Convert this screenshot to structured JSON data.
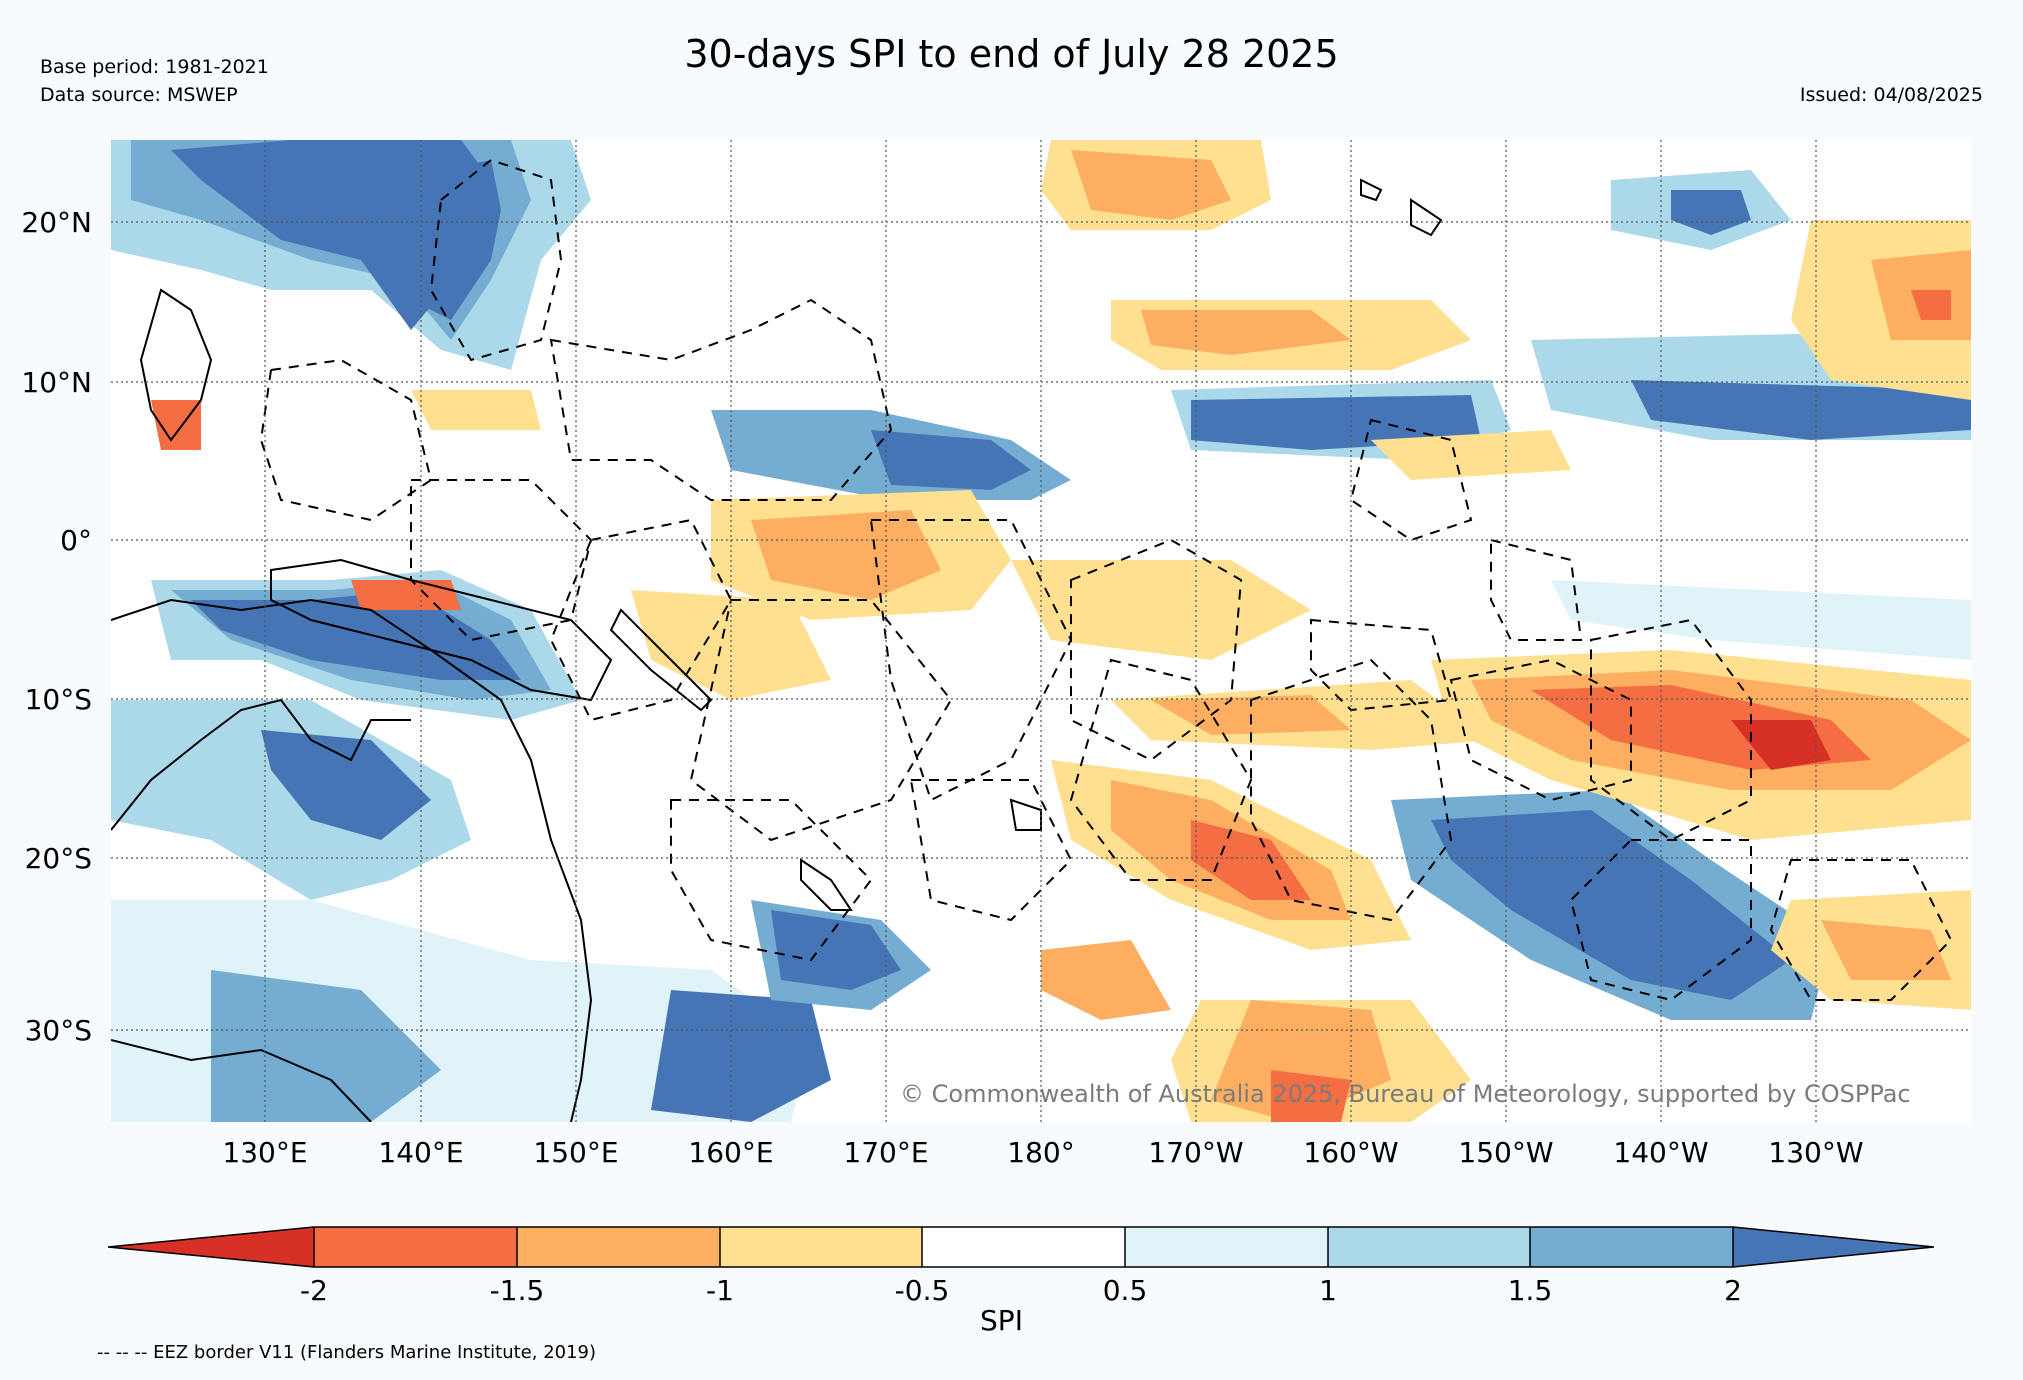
{
  "header": {
    "title": "30-days SPI to end of July 28 2025",
    "base_period": "Base period: 1981-2021",
    "data_source": "Data source: MSWEP",
    "issued": "Issued: 04/08/2025"
  },
  "map": {
    "lat_ticks": [
      "20°N",
      "10°N",
      "0°",
      "10°S",
      "20°S",
      "30°S"
    ],
    "lon_ticks": [
      "130°E",
      "140°E",
      "150°E",
      "160°E",
      "170°E",
      "180°",
      "170°W",
      "160°W",
      "150°W",
      "140°W",
      "130°W"
    ],
    "copyright": "© Commonwealth of Australia 2025, Bureau of Meteorology, supported by COSPPac",
    "gridlines": true
  },
  "colorbar": {
    "label": "SPI",
    "ticks": [
      "-2",
      "-1.5",
      "-1",
      "-0.5",
      "0.5",
      "1",
      "1.5",
      "2"
    ],
    "colors": [
      "#d73027",
      "#f46d43",
      "#fdae61",
      "#fee090",
      "#ffffff",
      "#e0f3f8",
      "#abd9e9",
      "#74add1",
      "#4575b4"
    ]
  },
  "legend_note": "-- -- -- EEZ border V11 (Flanders Marine Institute, 2019)"
}
